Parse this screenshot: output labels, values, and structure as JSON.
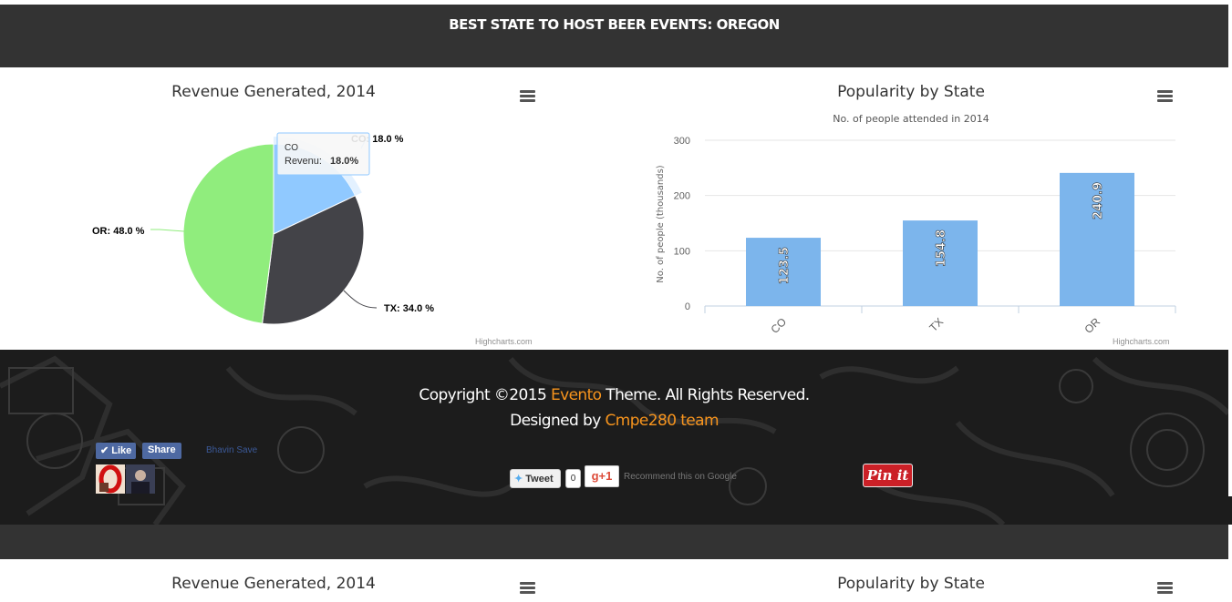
{
  "header": {
    "title": "BEST STATE TO HOST BEER EVENTS: OREGON"
  },
  "pie_chart": {
    "title": "Revenue Generated, 2014",
    "credits": "Highcharts.com",
    "menu_icon": "hamburger-menu-icon",
    "tooltip": {
      "category": "CO",
      "series": "Revenu:",
      "value": "18.0%"
    },
    "colors": {
      "CO": "#90c9ff",
      "TX": "#434348",
      "OR": "#90ed7d"
    },
    "labels": {
      "CO": "CO: 18.0 %",
      "TX": "TX: 34.0 %",
      "OR": "OR: 48.0 %"
    }
  },
  "bar_chart": {
    "title": "Popularity by State",
    "subtitle": "No. of people attended in 2014",
    "ylabel": "No. of people (thousands)",
    "credits": "Highcharts.com",
    "menu_icon": "hamburger-menu-icon",
    "bar_color": "#7cb5ec",
    "ticks": [
      "0",
      "100",
      "200",
      "300"
    ],
    "categories": [
      "CO",
      "TX",
      "OR"
    ],
    "value_labels": [
      "123.5",
      "154.8",
      "240.9"
    ]
  },
  "chart_data": [
    {
      "type": "pie",
      "title": "Revenue Generated, 2014",
      "series_name": "Revenu",
      "categories": [
        "CO",
        "TX",
        "OR"
      ],
      "values": [
        18.0,
        34.0,
        48.0
      ],
      "unit": "%"
    },
    {
      "type": "bar",
      "title": "Popularity by State",
      "subtitle": "No. of people attended in 2014",
      "xlabel": "",
      "ylabel": "No. of people (thousands)",
      "categories": [
        "CO",
        "TX",
        "OR"
      ],
      "values": [
        123.5,
        154.8,
        240.9
      ],
      "ylim": [
        0,
        300
      ],
      "yticks": [
        0,
        100,
        200,
        300
      ],
      "grid": true
    }
  ],
  "footer": {
    "copyright_prefix": "Copyright ©2015 ",
    "brand": "Evento",
    "copyright_suffix": " Theme. All Rights Reserved.",
    "designed_prefix": "Designed by ",
    "team": "Cmpe280 team",
    "accent_color": "#f7941d"
  },
  "social": {
    "like_label": "Like",
    "share_label": "Share",
    "user_name": "Bhavin Save",
    "tweet_label": "Tweet",
    "tweet_count": "0",
    "gplus_label": "g+1",
    "gplus_text": "Recommend this on Google",
    "pin_label": "Pin it"
  },
  "repeat_section": {
    "pie_title": "Revenue Generated, 2014",
    "bar_title": "Popularity by State"
  }
}
